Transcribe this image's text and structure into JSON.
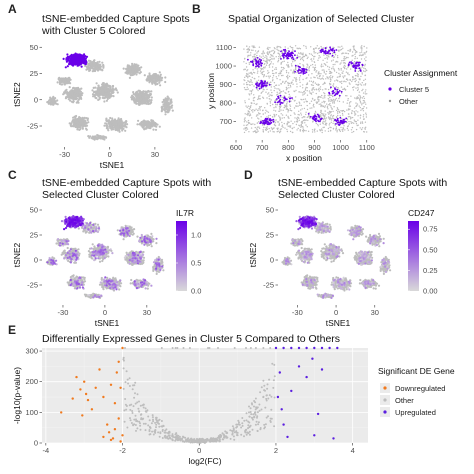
{
  "panels": {
    "A": {
      "letter": "A",
      "title": "tSNE-embedded Capture Spots\nwith Cluster 5 Colored"
    },
    "B": {
      "letter": "B",
      "title": "Spatial Organization of Selected Cluster"
    },
    "C": {
      "letter": "C",
      "title": "tSNE-embedded Capture Spots with\nSelected Cluster Colored"
    },
    "D": {
      "letter": "D",
      "title": "tSNE-embedded Capture Spots with\nSelected Cluster Colored"
    },
    "E": {
      "letter": "E",
      "title": "Differentially Expressed Genes in Cluster 5 Compared to Others"
    }
  },
  "colors": {
    "cluster5": "#6A00E8",
    "other": "#BDBDBD",
    "downregulated": "#F07A1F",
    "upregulated": "#5B1FE0",
    "panel_bg": "#EBEBEB",
    "gradient_low": "#D9D9D9",
    "gradient_high": "#6A00E8"
  },
  "chart_data": [
    {
      "id": "A",
      "type": "scatter",
      "xlabel": "tSNE1",
      "ylabel": "tSNE2",
      "xlim": [
        -45,
        48
      ],
      "ylim": [
        -45,
        55
      ],
      "xticks": [
        "-30",
        "0",
        "30"
      ],
      "xtick_values": [
        -30,
        0,
        30
      ],
      "yticks": [
        "-25",
        "0",
        "25",
        "50"
      ],
      "ytick_values": [
        -25,
        0,
        25,
        50
      ],
      "series": [
        {
          "name": "Other",
          "color": "#BDBDBD"
        },
        {
          "name": "Cluster 5",
          "color": "#6A00E8"
        }
      ],
      "grid": false
    },
    {
      "id": "B",
      "type": "scatter",
      "xlabel": "x position",
      "ylabel": "y position",
      "xlim": [
        600,
        1120
      ],
      "ylim": [
        600,
        1130
      ],
      "xticks": [
        "600",
        "700",
        "800",
        "900",
        "1000",
        "1100"
      ],
      "xtick_values": [
        600,
        700,
        800,
        900,
        1000,
        1100
      ],
      "yticks": [
        "700",
        "800",
        "900",
        "1000",
        "1100"
      ],
      "ytick_values": [
        700,
        800,
        900,
        1000,
        1100
      ],
      "legend": {
        "title": "Cluster Assignment",
        "entries": [
          "Cluster 5",
          "Other"
        ],
        "placement": "right"
      },
      "grid": false
    },
    {
      "id": "C",
      "type": "scatter",
      "xlabel": "tSNE1",
      "ylabel": "tSNE2",
      "xlim": [
        -45,
        48
      ],
      "ylim": [
        -45,
        55
      ],
      "xticks": [
        "-30",
        "0",
        "30"
      ],
      "xtick_values": [
        -30,
        0,
        30
      ],
      "yticks": [
        "-25",
        "0",
        "25",
        "50"
      ],
      "ytick_values": [
        -25,
        0,
        25,
        50
      ],
      "colorbar": {
        "title": "IL7R",
        "ticks": [
          "1.0",
          "0.5",
          "0.0"
        ],
        "tick_values": [
          1.0,
          0.5,
          0.0
        ],
        "range": [
          0,
          1.25
        ]
      },
      "grid": false
    },
    {
      "id": "D",
      "type": "scatter",
      "xlabel": "tSNE1",
      "ylabel": "tSNE2",
      "xlim": [
        -45,
        48
      ],
      "ylim": [
        -45,
        55
      ],
      "xticks": [
        "-30",
        "0",
        "30"
      ],
      "xtick_values": [
        -30,
        0,
        30
      ],
      "yticks": [
        "-25",
        "0",
        "25",
        "50"
      ],
      "ytick_values": [
        -25,
        0,
        25,
        50
      ],
      "colorbar": {
        "title": "CD247",
        "ticks": [
          "0.75",
          "0.50",
          "0.25",
          "0.00"
        ],
        "tick_values": [
          0.75,
          0.5,
          0.25,
          0.0
        ],
        "range": [
          0,
          0.85
        ]
      },
      "grid": false
    },
    {
      "id": "E",
      "type": "scatter",
      "xlabel": "log2(FC)",
      "ylabel": "-log10(p-value)",
      "xlim": [
        -4.1,
        4.4
      ],
      "ylim": [
        0,
        310
      ],
      "xticks": [
        "-4",
        "-2",
        "0",
        "2",
        "4"
      ],
      "xtick_values": [
        -4,
        -2,
        0,
        2,
        4
      ],
      "yticks": [
        "0",
        "100",
        "200",
        "300"
      ],
      "ytick_values": [
        0,
        100,
        200,
        300
      ],
      "legend": {
        "title": "Significant DE Gene",
        "entries": [
          "Downregulated",
          "Other",
          "Upregulated"
        ],
        "placement": "right"
      },
      "series": [
        {
          "name": "Downregulated",
          "color": "#F07A1F",
          "points": [
            [
              -3.6,
              100
            ],
            [
              -3.3,
              145
            ],
            [
              -3.2,
              215
            ],
            [
              -3.1,
              175
            ],
            [
              -3.0,
              200
            ],
            [
              -3.05,
              90
            ],
            [
              -2.95,
              160
            ],
            [
              -2.9,
              140
            ],
            [
              -2.8,
              110
            ],
            [
              -2.7,
              180
            ],
            [
              -2.6,
              240
            ],
            [
              -2.5,
              150
            ],
            [
              -2.4,
              60
            ],
            [
              -2.35,
              35
            ],
            [
              -2.3,
              190
            ],
            [
              -2.25,
              15
            ],
            [
              -2.2,
              130
            ],
            [
              -2.15,
              230
            ],
            [
              -2.1,
              80
            ],
            [
              -2.1,
              265
            ],
            [
              -2.05,
              180
            ],
            [
              -2.0,
              25
            ],
            [
              -2.2,
              45
            ],
            [
              -2.3,
              10
            ],
            [
              -2.05,
              5
            ],
            [
              -2.5,
              20
            ],
            [
              -2.0,
              310
            ]
          ]
        },
        {
          "name": "Upregulated",
          "color": "#5B1FE0",
          "points": [
            [
              2.0,
              310
            ],
            [
              2.2,
              310
            ],
            [
              2.4,
              310
            ],
            [
              2.6,
              310
            ],
            [
              2.8,
              310
            ],
            [
              3.0,
              310
            ],
            [
              3.2,
              310
            ],
            [
              3.4,
              310
            ],
            [
              3.6,
              310
            ],
            [
              2.05,
              150
            ],
            [
              2.1,
              230
            ],
            [
              2.2,
              60
            ],
            [
              2.3,
              20
            ],
            [
              2.4,
              170
            ],
            [
              2.6,
              250
            ],
            [
              2.8,
              215
            ],
            [
              2.95,
              275
            ],
            [
              3.1,
              95
            ],
            [
              3.2,
              240
            ],
            [
              3.0,
              25
            ],
            [
              3.5,
              15
            ],
            [
              2.15,
              110
            ]
          ]
        }
      ],
      "grid": true
    }
  ]
}
